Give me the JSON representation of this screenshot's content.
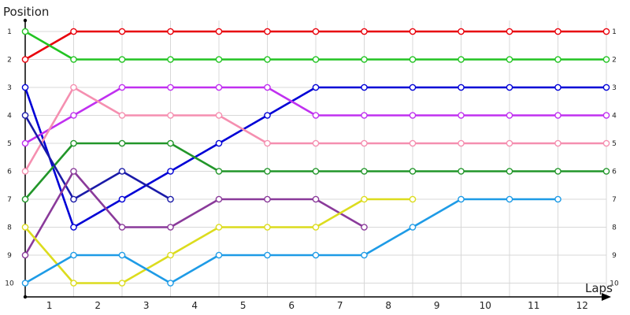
{
  "chart_data": {
    "type": "line",
    "title": "",
    "xlabel": "Laps",
    "ylabel": "Position",
    "x_categories": [
      "1",
      "2",
      "3",
      "4",
      "5",
      "6",
      "7",
      "8",
      "9",
      "10",
      "11",
      "12"
    ],
    "y_ticks": [
      "1",
      "2",
      "3",
      "4",
      "5",
      "6",
      "7",
      "8",
      "9",
      "10"
    ],
    "ylim": [
      1,
      10
    ],
    "grid": true,
    "x": [
      0,
      1,
      2,
      3,
      4,
      5,
      6,
      7,
      8,
      9,
      10,
      11,
      12
    ],
    "series": [
      {
        "color": "#e8000b",
        "values": [
          2,
          1,
          1,
          1,
          1,
          1,
          1,
          1,
          1,
          1,
          1,
          1,
          1
        ]
      },
      {
        "color": "#22c422",
        "values": [
          1,
          2,
          2,
          2,
          2,
          2,
          2,
          2,
          2,
          2,
          2,
          2,
          2
        ]
      },
      {
        "color": "#0000d6",
        "values": [
          3,
          8,
          7,
          6,
          5,
          4,
          3,
          3,
          3,
          3,
          3,
          3,
          3
        ]
      },
      {
        "color": "#c030f0",
        "values": [
          5,
          4,
          3,
          3,
          3,
          3,
          4,
          4,
          4,
          4,
          4,
          4,
          4
        ]
      },
      {
        "color": "#f58fb0",
        "values": [
          6,
          3,
          4,
          4,
          4,
          5,
          5,
          5,
          5,
          5,
          5,
          5,
          5
        ]
      },
      {
        "color": "#22962a",
        "values": [
          7,
          5,
          5,
          5,
          6,
          6,
          6,
          6,
          6,
          6,
          6,
          6,
          6
        ]
      },
      {
        "color": "#1a1aa8",
        "values": [
          4,
          7,
          6,
          7,
          null,
          null,
          null,
          null,
          null,
          null,
          null,
          null,
          null
        ]
      },
      {
        "color": "#8a3a9a",
        "values": [
          9,
          6,
          8,
          8,
          7,
          7,
          7,
          8,
          null,
          null,
          null,
          null,
          null
        ]
      },
      {
        "color": "#dcdc1e",
        "values": [
          8,
          10,
          10,
          9,
          8,
          8,
          8,
          7,
          7,
          null,
          null,
          null,
          null
        ]
      },
      {
        "color": "#1e9be6",
        "values": [
          10,
          9,
          9,
          10,
          9,
          9,
          9,
          9,
          8,
          7,
          7,
          7,
          null
        ]
      }
    ]
  }
}
